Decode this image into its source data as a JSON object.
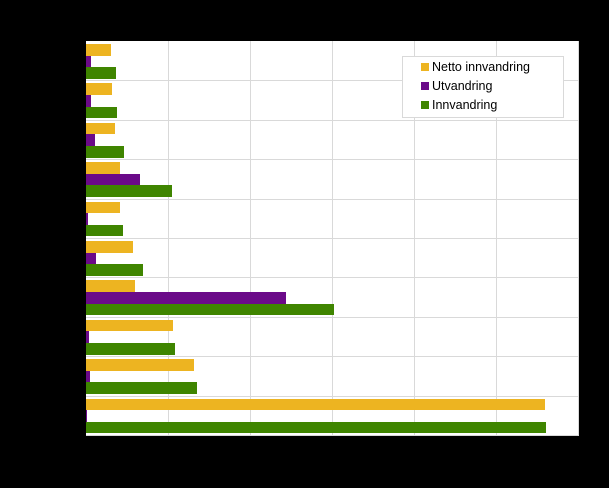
{
  "chart_data": {
    "type": "bar",
    "orientation": "horizontal",
    "title": "",
    "xlabel": "",
    "ylabel": "",
    "value_unit_note": "Axis tick labels and category labels not legible (rendered black on black); values expressed in grid-interval units",
    "xlim": [
      0,
      6
    ],
    "grid": true,
    "legend_position": "top-right inside plot",
    "categories": [
      "",
      "",
      "",
      "",
      "",
      "",
      "",
      "",
      "",
      ""
    ],
    "series": [
      {
        "name": "Netto innvandring",
        "color": "#edb421",
        "values": [
          0.3,
          0.32,
          0.35,
          0.41,
          0.41,
          0.57,
          0.6,
          1.06,
          1.32,
          5.6
        ]
      },
      {
        "name": "Utvandring",
        "color": "#6b0a89",
        "values": [
          0.06,
          0.06,
          0.11,
          0.66,
          0.02,
          0.12,
          2.44,
          0.04,
          0.05,
          0.01
        ]
      },
      {
        "name": "Innvandring",
        "color": "#3f8500",
        "values": [
          0.37,
          0.38,
          0.46,
          1.05,
          0.45,
          0.7,
          3.02,
          1.09,
          1.35,
          5.61
        ]
      }
    ]
  },
  "legend": {
    "items": [
      {
        "label": "Netto innvandring",
        "color": "#edb421"
      },
      {
        "label": "Utvandring",
        "color": "#6b0a89"
      },
      {
        "label": "Innvandring",
        "color": "#3f8500"
      }
    ]
  },
  "colors": {
    "background": "#000000",
    "plot_background": "#ffffff",
    "grid": "#d9d9d9"
  }
}
